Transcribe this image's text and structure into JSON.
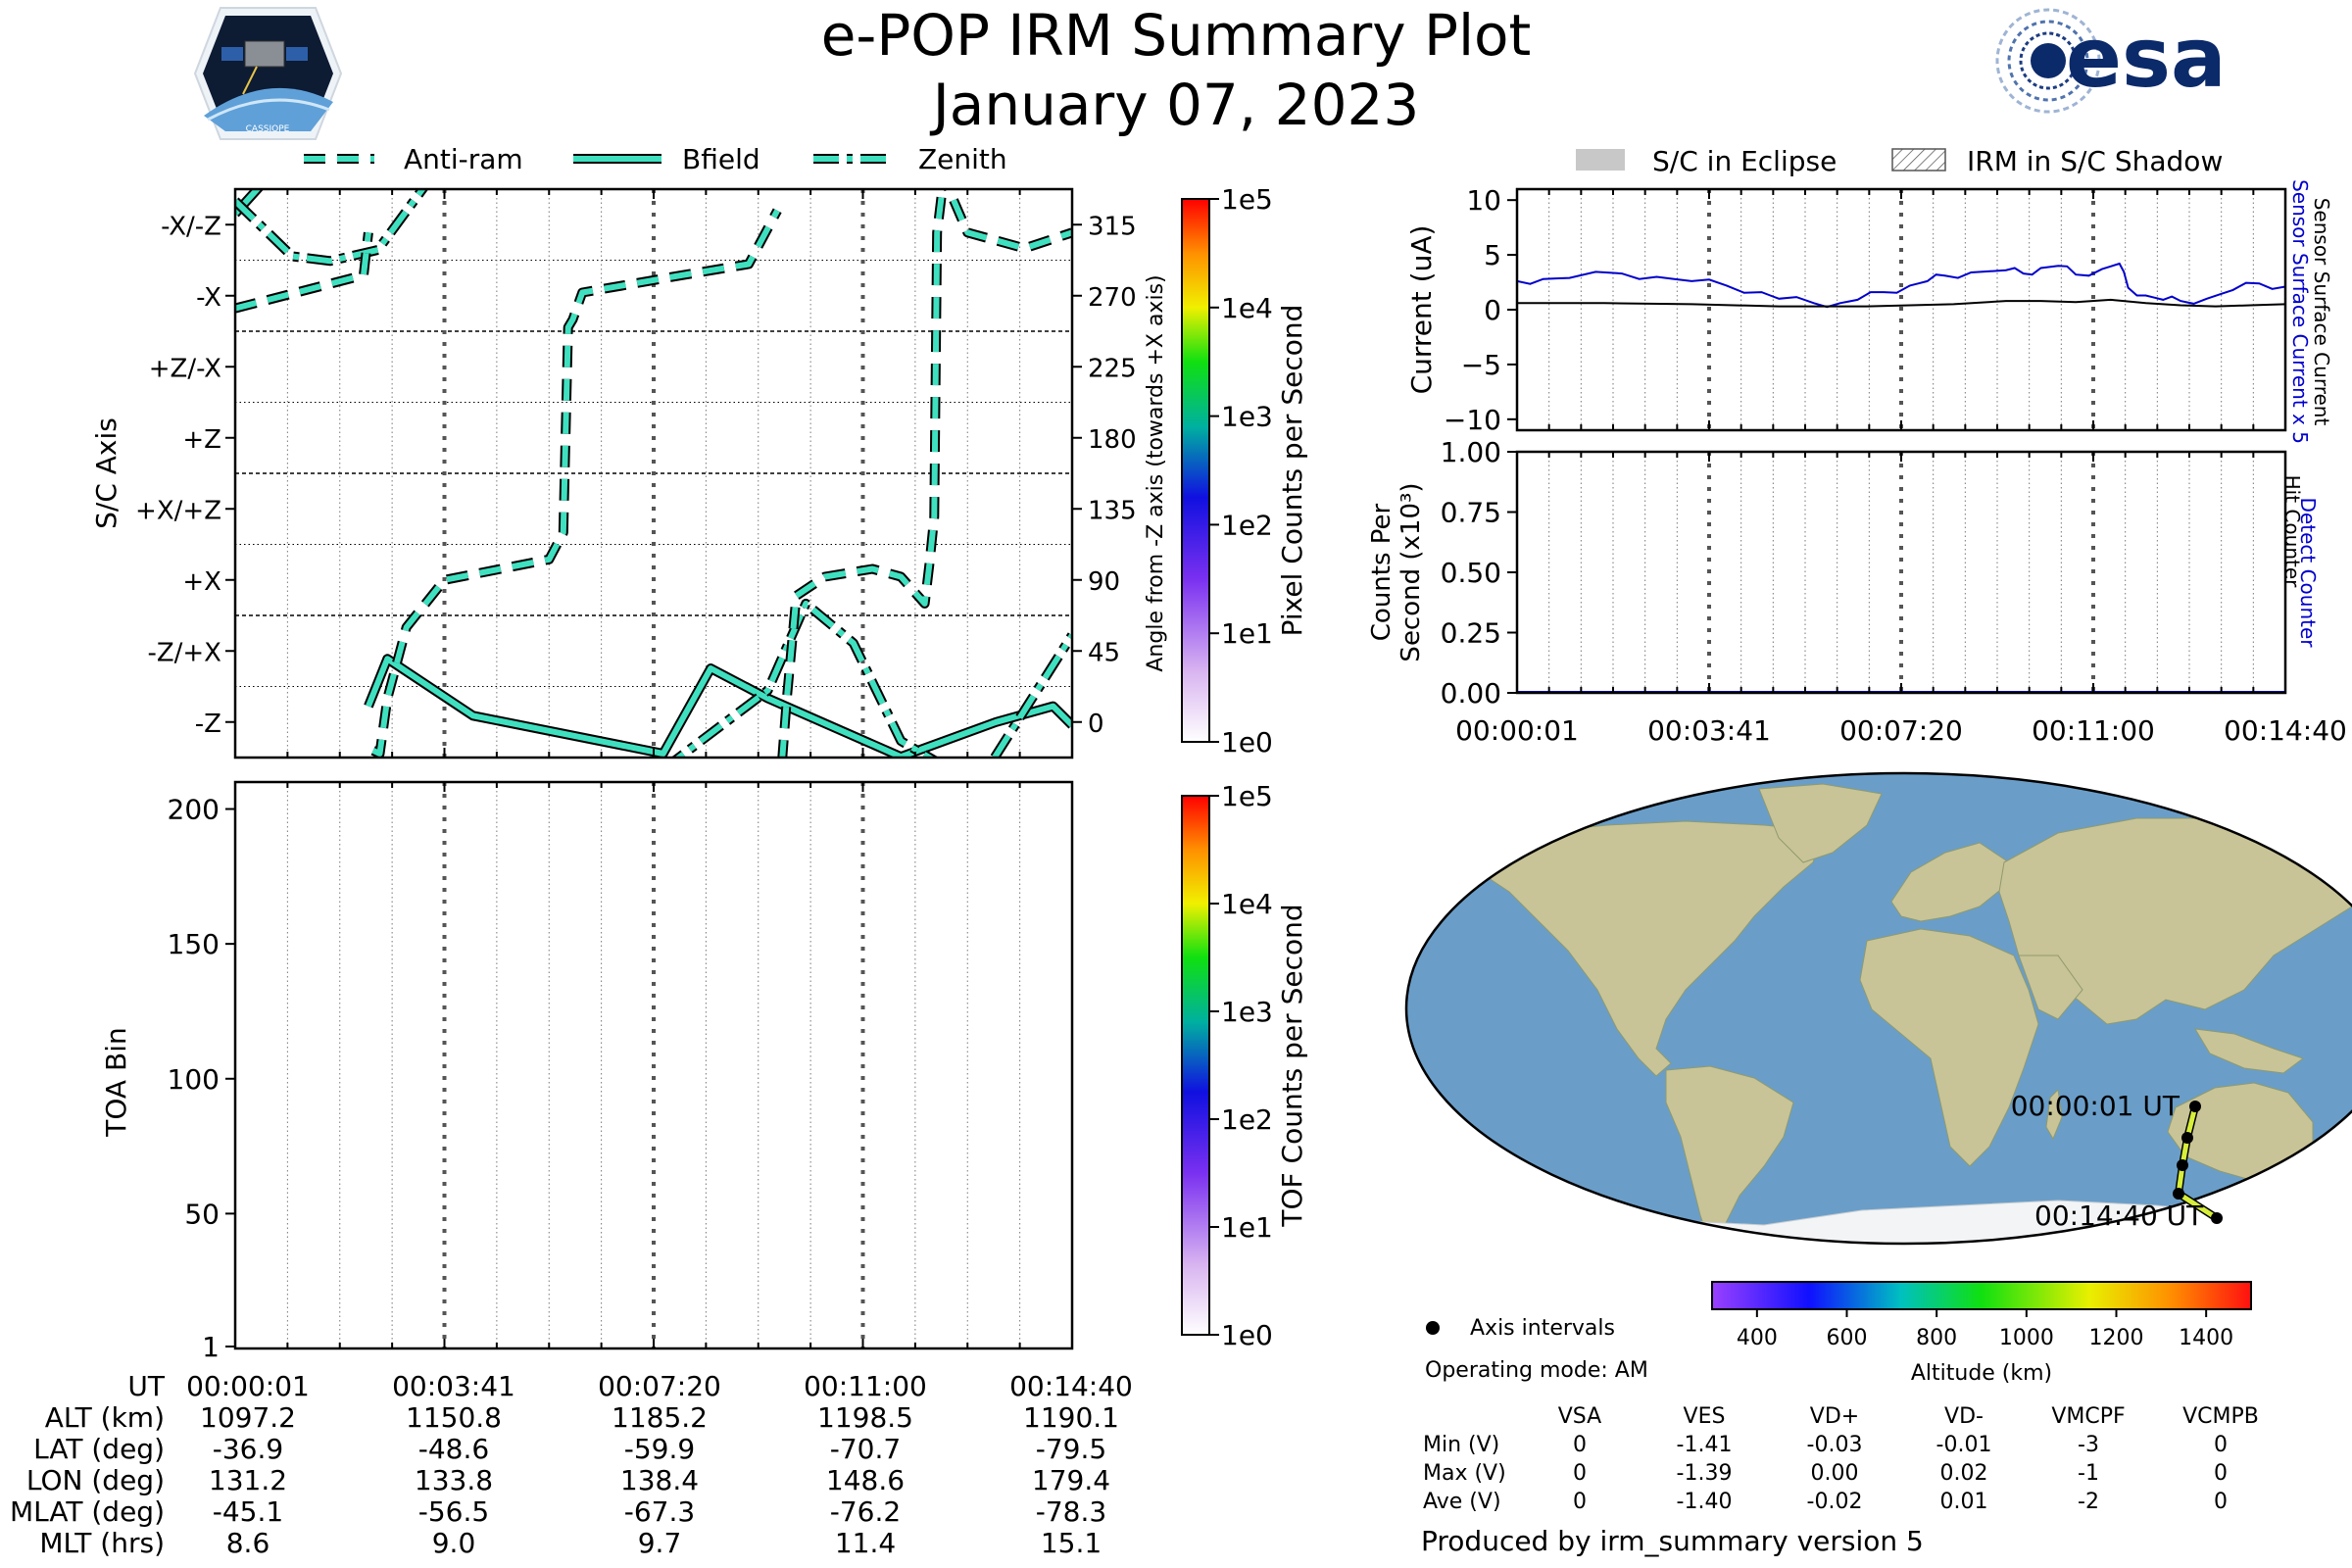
{
  "header": {
    "title": "e-POP IRM Summary Plot",
    "date": "January 07, 2023",
    "mission_logo_text": "CASSIOPE",
    "agency_logo_text": "esa"
  },
  "colors": {
    "trace_fill": "#3fe0c0",
    "trace_edge": "#000000",
    "sensor_current": "#0000cc",
    "surface_current": "#000000",
    "eclipse": "#c8c8c8",
    "ocean": "#6a9ec9",
    "land": "#c8c497",
    "track": "#d7ee3a"
  },
  "attitude_legend": [
    {
      "label": "Anti-ram",
      "style": "dashed"
    },
    {
      "label": "Bfield",
      "style": "solid"
    },
    {
      "label": "Zenith",
      "style": "dashdot"
    }
  ],
  "chart_data": [
    {
      "type": "line",
      "title": "Spacecraft attitude",
      "ylabel": "S/C Axis",
      "ylabel_right": "Angle from -Z axis (towards +X axis)",
      "ylim": [
        -22.5,
        337.5
      ],
      "xlim": [
        0,
        880
      ],
      "axis_ticks": [
        {
          "label": "-Z",
          "value": 0
        },
        {
          "label": "-Z/+X",
          "value": 45
        },
        {
          "label": "+X",
          "value": 90
        },
        {
          "label": "+X/+Z",
          "value": 135
        },
        {
          "label": "+Z",
          "value": 180
        },
        {
          "label": "+Z/-X",
          "value": 225
        },
        {
          "label": "-X",
          "value": 270
        },
        {
          "label": "-X/-Z",
          "value": 315
        }
      ],
      "angle_ticks": [
        "0",
        "45",
        "90",
        "135",
        "180",
        "225",
        "270",
        "315"
      ],
      "series": [
        {
          "name": "Bfield",
          "points": [
            [
              0,
              322
            ],
            [
              30,
              342
            ],
            [
              140,
              10
            ],
            [
              160,
              40
            ],
            [
              250,
              4
            ],
            [
              450,
              -20
            ],
            [
              500,
              34
            ],
            [
              560,
              15
            ],
            [
              700,
              -22
            ],
            [
              800,
              0
            ],
            [
              860,
              10
            ],
            [
              880,
              -2
            ]
          ]
        },
        {
          "name": "Zenith",
          "points": [
            [
              0,
              330
            ],
            [
              60,
              295
            ],
            [
              100,
              292
            ],
            [
              150,
              299
            ],
            [
              200,
              340
            ],
            [
              450,
              -30
            ],
            [
              560,
              20
            ],
            [
              600,
              75
            ],
            [
              650,
              50
            ],
            [
              700,
              -12
            ],
            [
              780,
              -40
            ],
            [
              880,
              55
            ]
          ]
        },
        {
          "name": "Anti-ram",
          "points": [
            [
              0,
              262
            ],
            [
              135,
              283
            ],
            [
              140,
              310
            ],
            [
              145,
              -18
            ],
            [
              152,
              -20
            ],
            [
              160,
              15
            ],
            [
              180,
              60
            ],
            [
              220,
              90
            ],
            [
              330,
              103
            ],
            [
              345,
              120
            ],
            [
              350,
              250
            ],
            [
              355,
              255
            ],
            [
              365,
              272
            ],
            [
              470,
              283
            ],
            [
              540,
              290
            ],
            [
              570,
              324
            ],
            [
              575,
              -25
            ],
            [
              580,
              15
            ],
            [
              590,
              80
            ],
            [
              620,
              92
            ],
            [
              670,
              97
            ],
            [
              700,
              92
            ],
            [
              725,
              75
            ],
            [
              730,
              100
            ],
            [
              735,
              130
            ],
            [
              738,
              310
            ],
            [
              745,
              345
            ],
            [
              770,
              310
            ],
            [
              830,
              300
            ],
            [
              880,
              310
            ]
          ]
        }
      ]
    },
    {
      "type": "heatmap",
      "ylabel": "TOA Bin",
      "y_ticks": [
        "1",
        "50",
        "100",
        "150",
        "200"
      ],
      "ylim": [
        1,
        210
      ],
      "values": []
    },
    {
      "type": "line",
      "ylabel": "Current (uA)",
      "ylim": [
        -11,
        11
      ],
      "y_ticks": [
        "10",
        "5",
        "0",
        "−5",
        "−10"
      ],
      "right_labels": [
        "Sensor Surface Current x 5",
        "Sensor Surface Current"
      ],
      "series": [
        {
          "name": "Sensor Surface Current x 5",
          "x": [
            0,
            30,
            60,
            120,
            160,
            200,
            240,
            280,
            300,
            340,
            370,
            390,
            420,
            450,
            470,
            490,
            520,
            560,
            580,
            600,
            620,
            640,
            670,
            690,
            700,
            720,
            740,
            760,
            790,
            820,
            850,
            880
          ],
          "values": [
            2.6,
            2.8,
            2.9,
            3.3,
            3.0,
            2.6,
            2.2,
            1.6,
            1.0,
            0.6,
            0.6,
            0.9,
            1.6,
            2.2,
            2.6,
            3.1,
            3.4,
            3.6,
            3.3,
            3.8,
            4.0,
            3.2,
            3.7,
            4.2,
            2.0,
            1.3,
            0.9,
            0.8,
            1.0,
            1.8,
            2.4,
            2.1
          ]
        },
        {
          "name": "Sensor Surface Current",
          "x": [
            0,
            100,
            200,
            300,
            400,
            500,
            560,
            600,
            640,
            680,
            720,
            760,
            800,
            840,
            880
          ],
          "values": [
            0.6,
            0.6,
            0.5,
            0.3,
            0.3,
            0.5,
            0.8,
            0.8,
            0.7,
            0.9,
            0.6,
            0.4,
            0.3,
            0.4,
            0.5
          ]
        }
      ]
    },
    {
      "type": "line",
      "ylabel": "Counts Per Second (x10³)",
      "ylim": [
        0,
        1
      ],
      "y_ticks": [
        "1.00",
        "0.75",
        "0.50",
        "0.25",
        "0.00"
      ],
      "right_labels": [
        "Detect Counter",
        "Hit Counter"
      ],
      "series": [
        {
          "name": "Detect Counter",
          "x": [
            0,
            880
          ],
          "values": [
            0,
            0
          ]
        },
        {
          "name": "Hit Counter",
          "x": [
            0,
            880
          ],
          "values": [
            0,
            0
          ]
        }
      ]
    }
  ],
  "colorbars": {
    "pixel": {
      "label": "Pixel Counts per Second",
      "ticks": [
        "1e0",
        "1e1",
        "1e2",
        "1e3",
        "1e4",
        "1e5"
      ]
    },
    "tof": {
      "label": "TOF Counts per Second",
      "ticks": [
        "1e0",
        "1e1",
        "1e2",
        "1e3",
        "1e4",
        "1e5"
      ]
    },
    "altitude": {
      "label": "Altitude (km)",
      "ticks": [
        "400",
        "600",
        "800",
        "1000",
        "1200",
        "1400"
      ],
      "range": [
        300,
        1500
      ]
    }
  },
  "eclipse_legend": {
    "eclipse": "S/C in Eclipse",
    "shadow": "IRM in S/C Shadow"
  },
  "time_ticks": [
    "00:00:01",
    "00:03:41",
    "00:07:20",
    "00:11:00",
    "00:14:40"
  ],
  "ephemeris": {
    "rows": [
      {
        "label": "UT",
        "values": [
          "00:00:01",
          "00:03:41",
          "00:07:20",
          "00:11:00",
          "00:14:40"
        ]
      },
      {
        "label": "ALT (km)",
        "values": [
          "1097.2",
          "1150.8",
          "1185.2",
          "1198.5",
          "1190.1"
        ]
      },
      {
        "label": "LAT (deg)",
        "values": [
          "-36.9",
          "-48.6",
          "-59.9",
          "-70.7",
          "-79.5"
        ]
      },
      {
        "label": "LON (deg)",
        "values": [
          "131.2",
          "133.8",
          "138.4",
          "148.6",
          "179.4"
        ]
      },
      {
        "label": "MLAT (deg)",
        "values": [
          "-45.1",
          "-56.5",
          "-67.3",
          "-76.2",
          "-78.3"
        ]
      },
      {
        "label": "MLT (hrs)",
        "values": [
          "8.6",
          "9.0",
          "9.7",
          "11.4",
          "15.1"
        ]
      }
    ]
  },
  "map": {
    "start_label": "00:00:01 UT",
    "end_label": "00:14:40 UT",
    "axis_intervals_label": "Axis intervals"
  },
  "operating_mode": "Operating mode: AM",
  "voltage_table": {
    "columns": [
      "VSA",
      "VES",
      "VD+",
      "VD-",
      "VMCPF",
      "VCMPB"
    ],
    "rows": [
      {
        "label": "Min (V)",
        "values": [
          "0",
          "-1.41",
          "-0.03",
          "-0.01",
          "-3",
          "0"
        ]
      },
      {
        "label": "Max (V)",
        "values": [
          "0",
          "-1.39",
          "0.00",
          "0.02",
          "-1",
          "0"
        ]
      },
      {
        "label": "Ave (V)",
        "values": [
          "0",
          "-1.40",
          "-0.02",
          "0.01",
          "-2",
          "0"
        ]
      }
    ]
  },
  "footer": "Produced by irm_summary version 5"
}
